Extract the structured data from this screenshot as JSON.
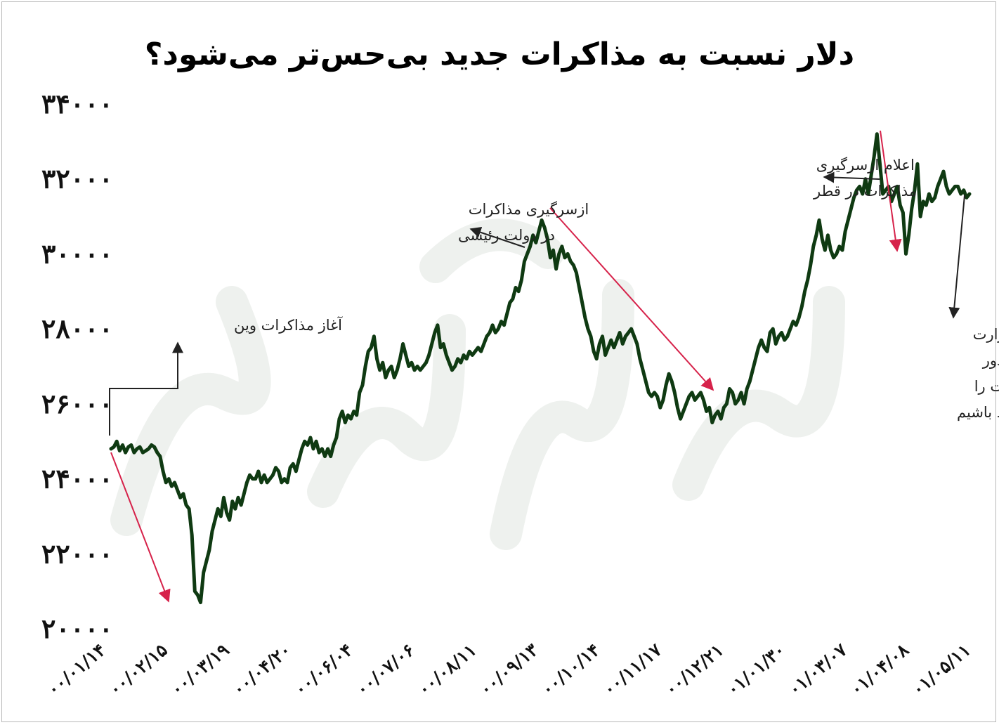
{
  "chart_data": {
    "type": "line",
    "title": "دلار نسبت به مذاکرات جدید بی‌حس‌تر می‌شود؟",
    "xlabel": "",
    "ylabel": "",
    "ylim": [
      20000,
      34000
    ],
    "y_ticks": [
      "۲۰۰۰۰",
      "۲۲۰۰۰",
      "۲۴۰۰۰",
      "۲۶۰۰۰",
      "۲۸۰۰۰",
      "۳۰۰۰۰",
      "۳۲۰۰۰",
      "۳۴۰۰۰"
    ],
    "x_ticks": [
      "۰۰/۰۱/۱۴",
      "۰۰/۰۲/۱۵",
      "۰۰/۰۳/۱۹",
      "۰۰/۰۴/۲۰",
      "۰۰/۰۶/۰۴",
      "۰۰/۰۷/۰۶",
      "۰۰/۰۸/۱۱",
      "۰۰/۰۹/۱۳",
      "۰۰/۱۰/۱۴",
      "۰۰/۱۱/۱۷",
      "۰۰/۱۲/۲۱",
      "۰۱/۰۱/۳۰",
      "۰۱/۰۳/۰۷",
      "۰۱/۰۴/۰۸",
      "۰۱/۰۵/۱۱"
    ],
    "grid": false,
    "line_color": "#0f3a12",
    "arrow_color": "#d6224a",
    "series": [
      {
        "name": "",
        "values": [
          24800,
          24850,
          25000,
          24750,
          24900,
          24700,
          24850,
          24900,
          24700,
          24800,
          24850,
          24700,
          24750,
          24800,
          24900,
          24850,
          24700,
          24600,
          24200,
          23900,
          24000,
          23800,
          23900,
          23700,
          23500,
          23600,
          23300,
          23200,
          22500,
          21000,
          20900,
          20700,
          21500,
          21800,
          22100,
          22600,
          22900,
          23200,
          23000,
          23500,
          23100,
          22900,
          23400,
          23200,
          23500,
          23300,
          23600,
          23900,
          24100,
          24000,
          24000,
          24200,
          23900,
          24100,
          23900,
          24000,
          24100,
          24300,
          24200,
          23900,
          24000,
          23900,
          24300,
          24400,
          24200,
          24500,
          24800,
          25000,
          24900,
          25100,
          24800,
          25000,
          24700,
          24800,
          24600,
          24800,
          24600,
          24900,
          25100,
          25600,
          25800,
          25500,
          25700,
          25600,
          25800,
          25700,
          26300,
          26500,
          27000,
          27400,
          27500,
          27800,
          27200,
          26900,
          27100,
          26700,
          26900,
          27000,
          26700,
          26900,
          27200,
          27600,
          27300,
          27000,
          27100,
          26900,
          27000,
          26900,
          27000,
          27100,
          27300,
          27600,
          27900,
          28100,
          27500,
          27600,
          27300,
          27100,
          26900,
          27000,
          27200,
          27100,
          27300,
          27200,
          27400,
          27300,
          27400,
          27500,
          27400,
          27600,
          27800,
          27900,
          28100,
          27900,
          28000,
          28200,
          28100,
          28400,
          28700,
          28800,
          29100,
          29000,
          29300,
          29800,
          30000,
          30200,
          30500,
          30300,
          30600,
          30900,
          30700,
          30400,
          29900,
          30100,
          29600,
          30000,
          30200,
          29900,
          30000,
          29800,
          29700,
          29500,
          29100,
          28700,
          28300,
          28000,
          27800,
          27400,
          27200,
          27600,
          27800,
          27300,
          27500,
          27700,
          27500,
          27700,
          27900,
          27600,
          27800,
          27900,
          28000,
          27800,
          27600,
          27200,
          26900,
          26600,
          26300,
          26200,
          26300,
          26200,
          25900,
          26100,
          26500,
          26800,
          26600,
          26300,
          25900,
          25600,
          25800,
          26000,
          26200,
          26300,
          26100,
          26200,
          26300,
          26100,
          25800,
          25900,
          25500,
          25700,
          25800,
          25600,
          25900,
          26000,
          26400,
          26300,
          26000,
          26100,
          26300,
          26000,
          26400,
          26600,
          26900,
          27200,
          27500,
          27700,
          27500,
          27400,
          27900,
          28000,
          27600,
          27800,
          27900,
          27700,
          27800,
          28000,
          28200,
          28100,
          28300,
          28600,
          29000,
          29300,
          29700,
          30200,
          30500,
          30900,
          30400,
          30100,
          30500,
          30100,
          29900,
          30000,
          30200,
          30100,
          30600,
          30900,
          31200,
          31500,
          31700,
          31800,
          31600,
          32000,
          31600,
          32100,
          32600,
          33200,
          32400,
          31600,
          31700,
          31800,
          31400,
          31600,
          31800,
          31300,
          31100,
          30000,
          30500,
          31200,
          31700,
          32400,
          31000,
          31400,
          31300,
          31600,
          31400,
          31500,
          31800,
          32000,
          32200,
          31800,
          31600,
          31700,
          31800,
          31800,
          31600,
          31700,
          31500,
          31600
        ]
      }
    ],
    "annotations": [
      {
        "text": [
          "آغاز مذاکرات وین"
        ]
      },
      {
        "text": [
          "ازسرگیری مذاکرات",
          "در دولت رئیسی"
        ]
      },
      {
        "text": [
          "اعلام ازسرگیری",
          "مذاکرات در قطر"
        ]
      },
      {
        "text": [
          "سخنگوی وزارت",
          "خارجه: احتمالا دور",
          "جدید مذاکرات را",
          "شاهد باشیم"
        ]
      }
    ]
  }
}
